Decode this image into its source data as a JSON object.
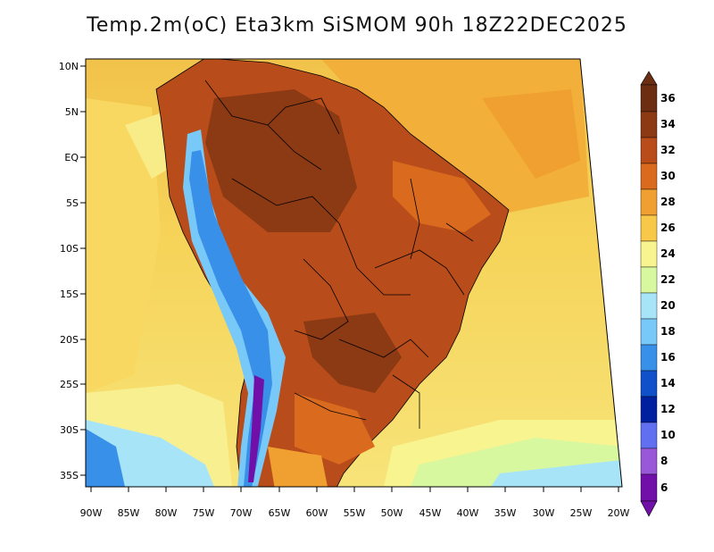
{
  "title": "Temp.2m(oC) Eta3km SiSMOM 90h 18Z22DEC2025",
  "lat_labels": [
    "10N",
    "5N",
    "EQ",
    "5S",
    "10S",
    "15S",
    "20S",
    "25S",
    "30S",
    "35S"
  ],
  "lon_labels": [
    "90W",
    "85W",
    "80W",
    "75W",
    "70W",
    "65W",
    "60W",
    "55W",
    "50W",
    "45W",
    "40W",
    "35W",
    "30W",
    "25W",
    "20W"
  ],
  "colorbar": {
    "labels": [
      "36",
      "34",
      "32",
      "30",
      "28",
      "26",
      "24",
      "22",
      "20",
      "18",
      "16",
      "14",
      "12",
      "10",
      "8",
      "6"
    ],
    "colors": [
      "#6b2e12",
      "#8b3a14",
      "#b84c1a",
      "#d96a1e",
      "#f0a030",
      "#f8c848",
      "#f8f490",
      "#d8f8a0",
      "#a8e4f8",
      "#78c8f8",
      "#3890e8",
      "#1050c8",
      "#0020a0",
      "#6070f0",
      "#9858d8",
      "#7010a8"
    ]
  }
}
